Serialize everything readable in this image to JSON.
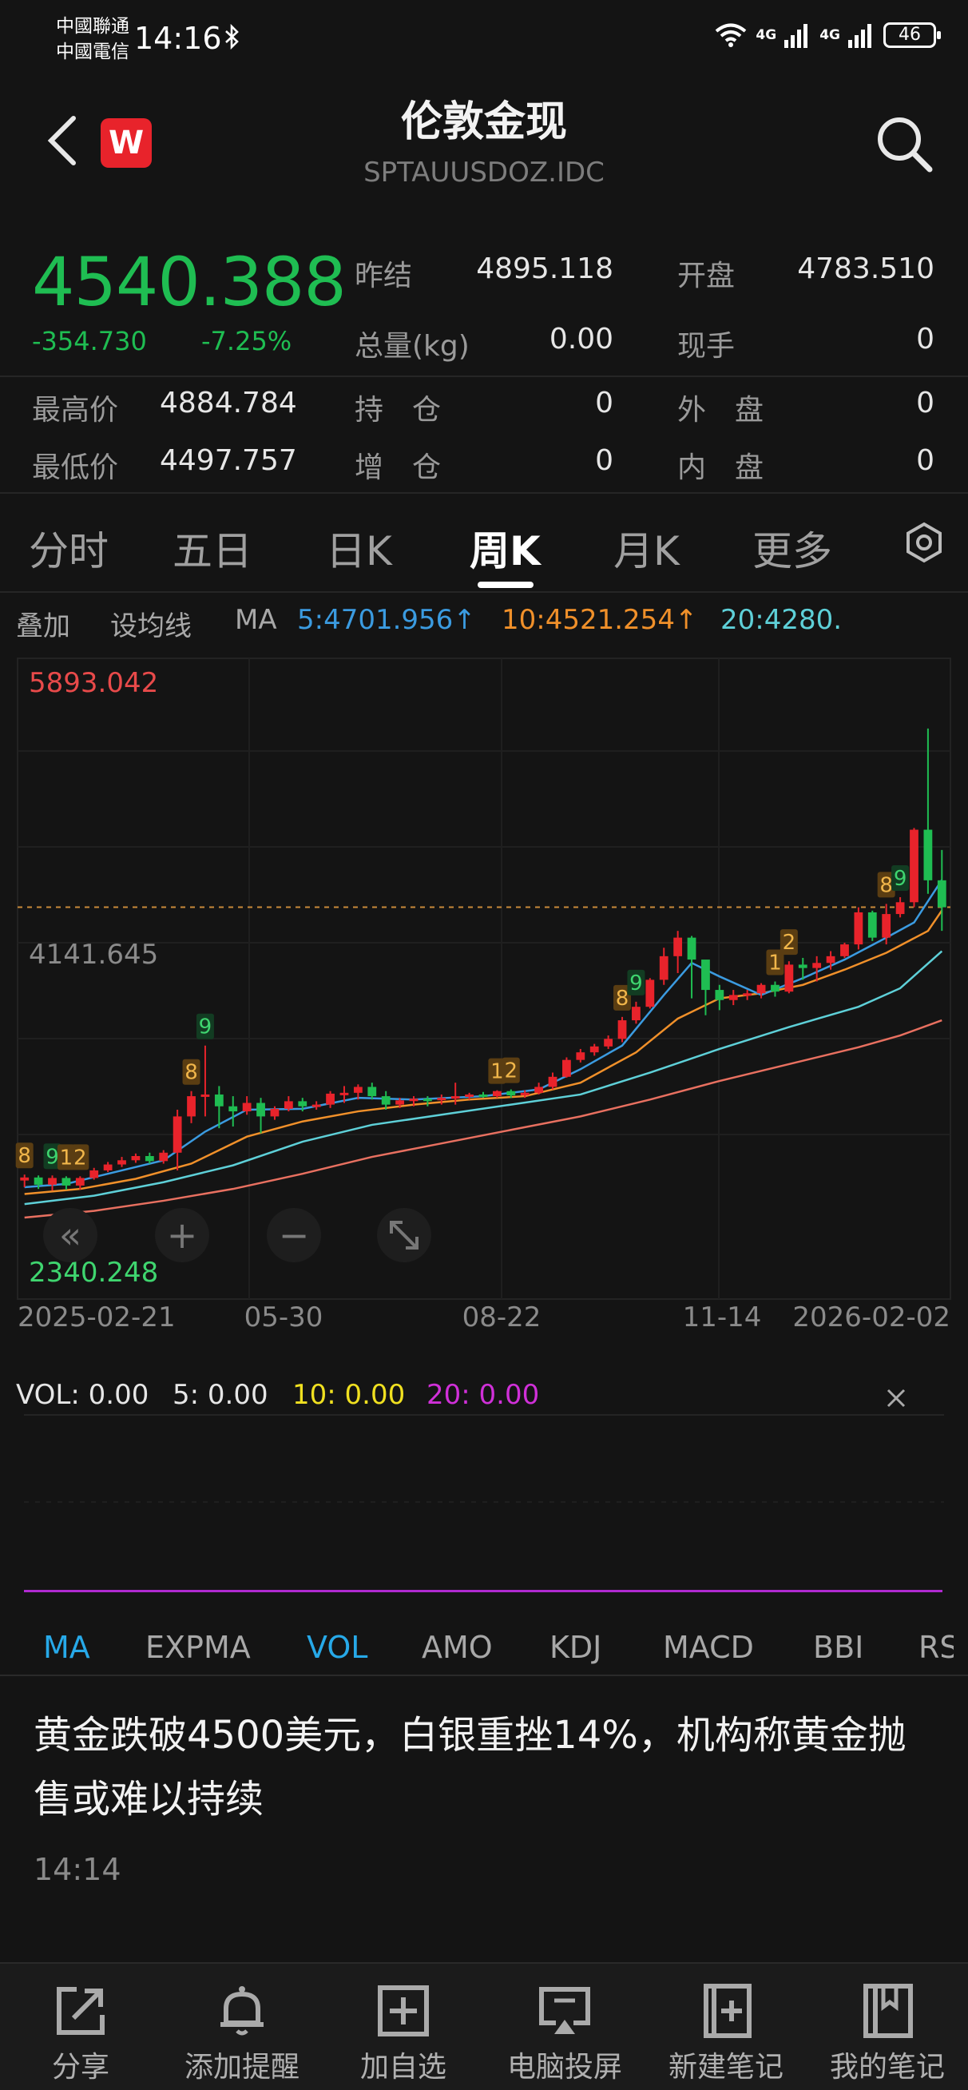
{
  "status": {
    "carrier1": "中國聯通",
    "carrier2": "中國電信",
    "time": "14:16",
    "net1": "4G",
    "net2": "4G",
    "battery": "46"
  },
  "header": {
    "title": "伦敦金现",
    "code": "SPTAUUSDOZ.IDC",
    "brand": "W"
  },
  "quote": {
    "price": "4540.388",
    "change": "-354.730",
    "change_pct": "-7.25%",
    "rows": [
      {
        "l1": "昨结",
        "v1": "4895.118",
        "l2": "开盘",
        "v2": "4783.510"
      },
      {
        "l1": "总量(kg)",
        "v1": "0.00",
        "l2": "现手",
        "v2": "0"
      }
    ],
    "rows2": [
      {
        "l0": "最高价",
        "v0": "4884.784",
        "l1": "持　仓",
        "v1": "0",
        "l2": "外　盘",
        "v2": "0"
      },
      {
        "l0": "最低价",
        "v0": "4497.757",
        "l1": "增　仓",
        "v1": "0",
        "l2": "内　盘",
        "v2": "0"
      }
    ]
  },
  "tabs": [
    "分时",
    "五日",
    "日K",
    "周K",
    "月K",
    "更多"
  ],
  "active_tab": "周K",
  "ma_row": {
    "overlay": "叠加",
    "set_ma": "设均线",
    "ma": "MA",
    "ma5": "5:4701.956↑",
    "ma10": "10:4521.254↑",
    "ma20": "20:4280."
  },
  "colors": {
    "up": "#e8232b",
    "down": "#1fbd52",
    "ma5": "#3b9be0",
    "ma10": "#f0902a",
    "ma20": "#5ed0d8",
    "ma60": "#e87060"
  },
  "chart_data": {
    "type": "candlestick",
    "max_label": "5893.042",
    "mid_label": "4141.645",
    "min_label": "2340.248",
    "x_ticks": [
      "2025-02-21",
      "05-30",
      "08-22",
      "11-14",
      "2026-02-02"
    ],
    "ylim": [
      2340.248,
      5893.042
    ],
    "last_price": 4540.388,
    "candles": [
      [
        2920,
        2938,
        2880,
        2955
      ],
      [
        2938,
        2895,
        2870,
        2950
      ],
      [
        2895,
        2935,
        2860,
        2950
      ],
      [
        2935,
        2890,
        2865,
        2945
      ],
      [
        2890,
        2935,
        2865,
        2945
      ],
      [
        2935,
        2980,
        2925,
        2995
      ],
      [
        2980,
        3015,
        2970,
        3030
      ],
      [
        3015,
        3040,
        3000,
        3060
      ],
      [
        3040,
        3065,
        3025,
        3080
      ],
      [
        3065,
        3035,
        3020,
        3085
      ],
      [
        3035,
        3085,
        3020,
        3100
      ],
      [
        3085,
        3300,
        2980,
        3340
      ],
      [
        3300,
        3420,
        3260,
        3450
      ],
      [
        3420,
        3430,
        3300,
        3720
      ],
      [
        3430,
        3360,
        3230,
        3480
      ],
      [
        3360,
        3330,
        3240,
        3420
      ],
      [
        3330,
        3380,
        3310,
        3420
      ],
      [
        3380,
        3300,
        3200,
        3410
      ],
      [
        3300,
        3345,
        3280,
        3360
      ],
      [
        3345,
        3390,
        3330,
        3420
      ],
      [
        3390,
        3360,
        3330,
        3410
      ],
      [
        3360,
        3370,
        3340,
        3390
      ],
      [
        3370,
        3435,
        3350,
        3450
      ],
      [
        3435,
        3440,
        3380,
        3480
      ],
      [
        3440,
        3475,
        3400,
        3490
      ],
      [
        3475,
        3420,
        3400,
        3500
      ],
      [
        3420,
        3370,
        3340,
        3450
      ],
      [
        3370,
        3395,
        3350,
        3410
      ],
      [
        3395,
        3405,
        3360,
        3420
      ],
      [
        3405,
        3400,
        3360,
        3420
      ],
      [
        3400,
        3410,
        3370,
        3430
      ],
      [
        3410,
        3420,
        3370,
        3500
      ],
      [
        3420,
        3430,
        3400,
        3440
      ],
      [
        3430,
        3420,
        3410,
        3445
      ],
      [
        3420,
        3450,
        3410,
        3455
      ],
      [
        3450,
        3425,
        3410,
        3460
      ],
      [
        3425,
        3440,
        3410,
        3455
      ],
      [
        3440,
        3475,
        3430,
        3500
      ],
      [
        3475,
        3535,
        3460,
        3560
      ],
      [
        3535,
        3635,
        3530,
        3650
      ],
      [
        3635,
        3680,
        3620,
        3700
      ],
      [
        3680,
        3715,
        3660,
        3730
      ],
      [
        3715,
        3760,
        3700,
        3780
      ],
      [
        3760,
        3870,
        3740,
        3890
      ],
      [
        3870,
        3950,
        3850,
        3980
      ],
      [
        3950,
        4110,
        3940,
        4120
      ],
      [
        4110,
        4250,
        4080,
        4300
      ],
      [
        4250,
        4360,
        4150,
        4400
      ],
      [
        4360,
        4230,
        4000,
        4370
      ],
      [
        4230,
        4050,
        3900,
        4200
      ],
      [
        4050,
        3990,
        3930,
        4080
      ],
      [
        3990,
        4020,
        3960,
        4050
      ],
      [
        4020,
        4030,
        3990,
        4050
      ],
      [
        4030,
        4080,
        4000,
        4090
      ],
      [
        4080,
        4040,
        4010,
        4100
      ],
      [
        4040,
        4200,
        4030,
        4220
      ],
      [
        4200,
        4180,
        4110,
        4240
      ],
      [
        4180,
        4210,
        4100,
        4250
      ],
      [
        4210,
        4250,
        4170,
        4280
      ],
      [
        4250,
        4320,
        4240,
        4330
      ],
      [
        4320,
        4510,
        4290,
        4540
      ],
      [
        4510,
        4360,
        4340,
        4520
      ],
      [
        4360,
        4500,
        4320,
        4560
      ],
      [
        4500,
        4570,
        4480,
        4600
      ],
      [
        4570,
        5000,
        4540,
        5010
      ],
      [
        5000,
        4700,
        4620,
        5600
      ],
      [
        4700,
        4540,
        4400,
        4880
      ]
    ],
    "ma5": [
      [
        0,
        2880
      ],
      [
        3,
        2900
      ],
      [
        6,
        2960
      ],
      [
        10,
        3040
      ],
      [
        13,
        3210
      ],
      [
        16,
        3340
      ],
      [
        20,
        3345
      ],
      [
        24,
        3410
      ],
      [
        28,
        3400
      ],
      [
        33,
        3420
      ],
      [
        37,
        3460
      ],
      [
        40,
        3580
      ],
      [
        43,
        3720
      ],
      [
        46,
        4020
      ],
      [
        48,
        4210
      ],
      [
        50,
        4130
      ],
      [
        53,
        4020
      ],
      [
        56,
        4120
      ],
      [
        59,
        4230
      ],
      [
        62,
        4360
      ],
      [
        64,
        4450
      ],
      [
        66,
        4702
      ]
    ],
    "ma10": [
      [
        0,
        2840
      ],
      [
        4,
        2870
      ],
      [
        8,
        2930
      ],
      [
        12,
        3020
      ],
      [
        16,
        3180
      ],
      [
        20,
        3270
      ],
      [
        24,
        3330
      ],
      [
        28,
        3370
      ],
      [
        32,
        3400
      ],
      [
        36,
        3420
      ],
      [
        40,
        3500
      ],
      [
        44,
        3680
      ],
      [
        47,
        3880
      ],
      [
        50,
        4000
      ],
      [
        53,
        4030
      ],
      [
        56,
        4080
      ],
      [
        59,
        4170
      ],
      [
        62,
        4270
      ],
      [
        65,
        4400
      ],
      [
        66,
        4521
      ]
    ],
    "ma20": [
      [
        0,
        2780
      ],
      [
        5,
        2830
      ],
      [
        10,
        2910
      ],
      [
        15,
        3010
      ],
      [
        20,
        3150
      ],
      [
        25,
        3250
      ],
      [
        30,
        3310
      ],
      [
        35,
        3370
      ],
      [
        40,
        3430
      ],
      [
        45,
        3560
      ],
      [
        50,
        3700
      ],
      [
        55,
        3830
      ],
      [
        60,
        3950
      ],
      [
        63,
        4060
      ],
      [
        66,
        4280
      ]
    ],
    "ma60": [
      [
        0,
        2700
      ],
      [
        5,
        2740
      ],
      [
        10,
        2800
      ],
      [
        15,
        2870
      ],
      [
        20,
        2960
      ],
      [
        25,
        3060
      ],
      [
        30,
        3140
      ],
      [
        35,
        3220
      ],
      [
        40,
        3300
      ],
      [
        45,
        3400
      ],
      [
        50,
        3510
      ],
      [
        55,
        3610
      ],
      [
        60,
        3710
      ],
      [
        63,
        3780
      ],
      [
        66,
        3870
      ]
    ],
    "labels": [
      {
        "i": 0,
        "t": "8",
        "kind": "up",
        "p": "above"
      },
      {
        "i": 2,
        "t": "9",
        "kind": "down",
        "p": "above"
      },
      {
        "i": 3,
        "t": "1",
        "kind": "up",
        "p": "above"
      },
      {
        "i": 4,
        "t": "2",
        "kind": "up",
        "p": "above"
      },
      {
        "i": 12,
        "t": "8",
        "kind": "up",
        "p": "above"
      },
      {
        "i": 13,
        "t": "9",
        "kind": "down",
        "p": "above"
      },
      {
        "i": 34,
        "t": "1",
        "kind": "up",
        "p": "above"
      },
      {
        "i": 35,
        "t": "2",
        "kind": "up",
        "p": "above"
      },
      {
        "i": 43,
        "t": "8",
        "kind": "up",
        "p": "above"
      },
      {
        "i": 44,
        "t": "9",
        "kind": "down",
        "p": "above"
      },
      {
        "i": 54,
        "t": "1",
        "kind": "up",
        "p": "above"
      },
      {
        "i": 55,
        "t": "2",
        "kind": "up",
        "p": "above"
      },
      {
        "i": 62,
        "t": "8",
        "kind": "up",
        "p": "above"
      },
      {
        "i": 63,
        "t": "9",
        "kind": "down",
        "p": "above"
      }
    ]
  },
  "chart_controls": {
    "rewind": "«",
    "zoom_in": "+",
    "zoom_out": "−"
  },
  "vol": {
    "label": "VOL: 0.00",
    "v5": "5: 0.00",
    "v10": "10: 0.00",
    "v20": "20: 0.00"
  },
  "indicators": [
    "MA",
    "EXPMA",
    "VOL",
    "AMO",
    "KDJ",
    "MACD",
    "BBI",
    "RS"
  ],
  "news": {
    "headline": "黄金跌破4500美元，白银重挫14%，机构称黄金抛售或难以持续",
    "time": "14:14"
  },
  "bottom_bar": [
    {
      "label": "分享",
      "icon": "share-icon"
    },
    {
      "label": "添加提醒",
      "icon": "bell-icon"
    },
    {
      "label": "加自选",
      "icon": "add-watchlist-icon"
    },
    {
      "label": "电脑投屏",
      "icon": "cast-screen-icon"
    },
    {
      "label": "新建笔记",
      "icon": "new-note-icon"
    },
    {
      "label": "我的笔记",
      "icon": "my-notes-icon"
    }
  ]
}
